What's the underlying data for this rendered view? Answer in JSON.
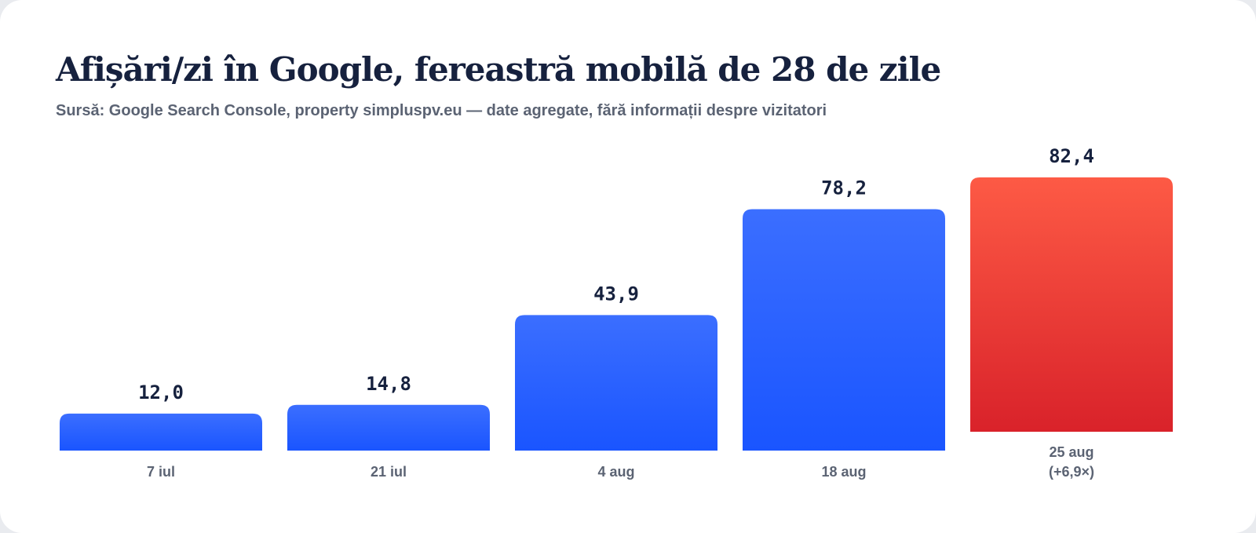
{
  "title": "Afișări/zi în Google, fereastră mobilă de 28 de zile",
  "subtitle": "Sursă: Google Search Console, property simpluspv.eu — date agregate, fără informații despre vizitatori",
  "chart_data": {
    "type": "bar",
    "categories": [
      "7 iul",
      "21 iul",
      "4 aug",
      "18 aug",
      "25 aug"
    ],
    "values": [
      12.0,
      14.8,
      43.9,
      78.2,
      82.4
    ],
    "value_labels": [
      "12,0",
      "14,8",
      "43,9",
      "78,2",
      "82,4"
    ],
    "annotations": [
      {
        "category": "25 aug",
        "text": "(+6,9×)"
      }
    ],
    "highlight_index": 4,
    "colors": {
      "bar_top": "#3b6eff",
      "bar_bottom": "#1a55ff",
      "highlight_top": "#fd5a45",
      "highlight_bottom": "#d9222a"
    },
    "grid": false,
    "legend": "none"
  }
}
